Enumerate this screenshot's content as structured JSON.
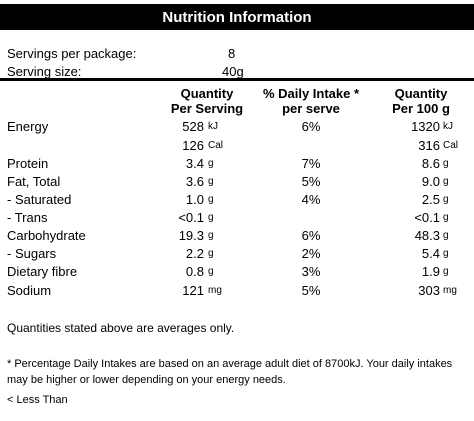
{
  "title": "Nutrition Information",
  "servings": {
    "label": "Servings per package:",
    "value": "8"
  },
  "serving_size": {
    "label": "Serving size:",
    "value": "40g"
  },
  "headers": {
    "per_serving": [
      "Quantity",
      "Per Serving"
    ],
    "daily_intake": [
      "% Daily Intake *",
      "per serve"
    ],
    "per_100g": [
      "Quantity",
      "Per 100 g"
    ]
  },
  "rows": [
    {
      "label": "Energy",
      "serving_value": "528",
      "serving_unit": "kJ",
      "daily_intake": "6%",
      "per100_value": "1320",
      "per100_unit": "kJ"
    },
    {
      "label": "",
      "serving_value": "126",
      "serving_unit": "Cal",
      "daily_intake": "",
      "per100_value": "316",
      "per100_unit": "Cal"
    },
    {
      "label": "Protein",
      "serving_value": "3.4",
      "serving_unit": "g",
      "daily_intake": "7%",
      "per100_value": "8.6",
      "per100_unit": "g"
    },
    {
      "label": "Fat, Total",
      "serving_value": "3.6",
      "serving_unit": "g",
      "daily_intake": "5%",
      "per100_value": "9.0",
      "per100_unit": "g"
    },
    {
      "label": "- Saturated",
      "serving_value": "1.0",
      "serving_unit": "g",
      "daily_intake": "4%",
      "per100_value": "2.5",
      "per100_unit": "g"
    },
    {
      "label": "- Trans",
      "serving_value": "<0.1",
      "serving_unit": "g",
      "daily_intake": "",
      "per100_value": "<0.1",
      "per100_unit": "g"
    },
    {
      "label": "Carbohydrate",
      "serving_value": "19.3",
      "serving_unit": "g",
      "daily_intake": "6%",
      "per100_value": "48.3",
      "per100_unit": "g"
    },
    {
      "label": "- Sugars",
      "serving_value": "2.2",
      "serving_unit": "g",
      "daily_intake": "2%",
      "per100_value": "5.4",
      "per100_unit": "g"
    },
    {
      "label": "Dietary fibre",
      "serving_value": "0.8",
      "serving_unit": "g",
      "daily_intake": "3%",
      "per100_value": "1.9",
      "per100_unit": "g"
    },
    {
      "label": "Sodium",
      "serving_value": "121",
      "serving_unit": "mg",
      "daily_intake": "5%",
      "per100_value": "303",
      "per100_unit": "mg"
    }
  ],
  "footnotes": {
    "averages": "Quantities stated above are averages only.",
    "daily_intake_note": "* Percentage Daily Intakes are based on an average adult diet of 8700kJ. Your daily intakes may be higher or lower depending on your energy needs.",
    "less_than": "< Less Than"
  }
}
